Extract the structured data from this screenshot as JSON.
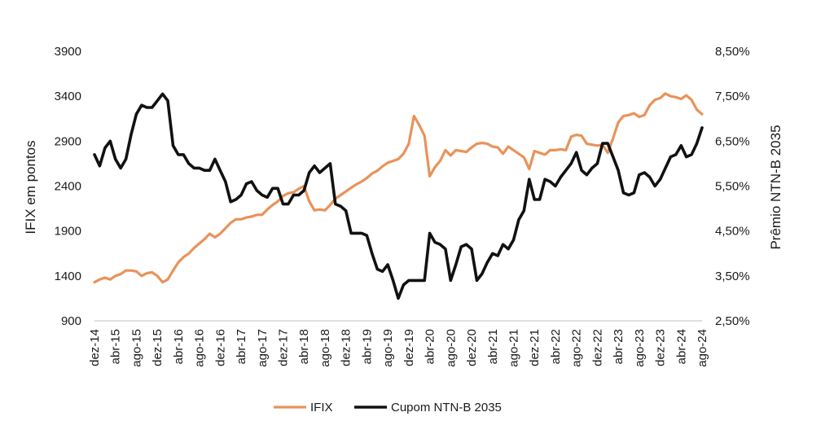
{
  "chart_data": {
    "type": "line",
    "ylabel_left": "IFIX em pontos",
    "ylabel_right": "Prêmio NTN-B 2035",
    "y_left_ticks": [
      "900",
      "1400",
      "1900",
      "2400",
      "2900",
      "3400",
      "3900"
    ],
    "y_right_ticks": [
      "2,50%",
      "3,50%",
      "4,50%",
      "5,50%",
      "6,50%",
      "7,50%",
      "8,50%"
    ],
    "ylim_left": [
      900,
      3900
    ],
    "ylim_right": [
      2.5,
      8.5
    ],
    "x_tick_labels": [
      "dez-14",
      "abr-15",
      "ago-15",
      "dez-15",
      "abr-16",
      "ago-16",
      "dez-16",
      "abr-17",
      "ago-17",
      "dez-17",
      "abr-18",
      "ago-18",
      "dez-18",
      "abr-19",
      "ago-19",
      "dez-19",
      "abr-20",
      "ago-20",
      "dez-20",
      "abr-21",
      "ago-21",
      "dez-21",
      "abr-22",
      "ago-22",
      "dez-22",
      "abr-23",
      "ago-23",
      "dez-23",
      "abr-24",
      "ago-24"
    ],
    "legend_position": "bottom",
    "grid": false,
    "series": [
      {
        "name": "IFIX",
        "axis": "left",
        "color": "#E8935A",
        "points": [
          [
            0,
            1330
          ],
          [
            1,
            1360
          ],
          [
            2,
            1380
          ],
          [
            3,
            1360
          ],
          [
            4,
            1400
          ],
          [
            5,
            1420
          ],
          [
            6,
            1460
          ],
          [
            7,
            1460
          ],
          [
            8,
            1450
          ],
          [
            9,
            1400
          ],
          [
            10,
            1430
          ],
          [
            11,
            1440
          ],
          [
            12,
            1400
          ],
          [
            13,
            1330
          ],
          [
            14,
            1360
          ],
          [
            15,
            1460
          ],
          [
            16,
            1550
          ],
          [
            17,
            1610
          ],
          [
            18,
            1650
          ],
          [
            19,
            1710
          ],
          [
            20,
            1760
          ],
          [
            21,
            1810
          ],
          [
            22,
            1870
          ],
          [
            23,
            1830
          ],
          [
            24,
            1870
          ],
          [
            25,
            1930
          ],
          [
            26,
            1990
          ],
          [
            27,
            2030
          ],
          [
            28,
            2030
          ],
          [
            29,
            2050
          ],
          [
            30,
            2060
          ],
          [
            31,
            2080
          ],
          [
            32,
            2080
          ],
          [
            33,
            2140
          ],
          [
            34,
            2190
          ],
          [
            35,
            2230
          ],
          [
            36,
            2290
          ],
          [
            37,
            2320
          ],
          [
            38,
            2330
          ],
          [
            39,
            2370
          ],
          [
            40,
            2400
          ],
          [
            41,
            2230
          ],
          [
            42,
            2130
          ],
          [
            43,
            2140
          ],
          [
            44,
            2130
          ],
          [
            45,
            2190
          ],
          [
            46,
            2260
          ],
          [
            47,
            2300
          ],
          [
            48,
            2340
          ],
          [
            49,
            2380
          ],
          [
            50,
            2420
          ],
          [
            51,
            2450
          ],
          [
            52,
            2490
          ],
          [
            53,
            2540
          ],
          [
            54,
            2570
          ],
          [
            55,
            2620
          ],
          [
            56,
            2660
          ],
          [
            57,
            2680
          ],
          [
            58,
            2700
          ],
          [
            59,
            2760
          ],
          [
            60,
            2870
          ],
          [
            61,
            3180
          ],
          [
            62,
            3080
          ],
          [
            63,
            2960
          ],
          [
            64,
            2510
          ],
          [
            65,
            2610
          ],
          [
            66,
            2680
          ],
          [
            67,
            2800
          ],
          [
            68,
            2740
          ],
          [
            69,
            2800
          ],
          [
            70,
            2790
          ],
          [
            71,
            2780
          ],
          [
            72,
            2830
          ],
          [
            73,
            2870
          ],
          [
            74,
            2880
          ],
          [
            75,
            2870
          ],
          [
            76,
            2840
          ],
          [
            77,
            2830
          ],
          [
            78,
            2760
          ],
          [
            79,
            2840
          ],
          [
            80,
            2800
          ],
          [
            81,
            2760
          ],
          [
            82,
            2720
          ],
          [
            83,
            2590
          ],
          [
            84,
            2790
          ],
          [
            85,
            2770
          ],
          [
            86,
            2750
          ],
          [
            87,
            2800
          ],
          [
            88,
            2800
          ],
          [
            89,
            2810
          ],
          [
            90,
            2800
          ],
          [
            91,
            2950
          ],
          [
            92,
            2970
          ],
          [
            93,
            2960
          ],
          [
            94,
            2870
          ],
          [
            95,
            2860
          ],
          [
            96,
            2850
          ],
          [
            97,
            2860
          ],
          [
            98,
            2770
          ],
          [
            99,
            2930
          ],
          [
            100,
            3110
          ],
          [
            101,
            3180
          ],
          [
            102,
            3190
          ],
          [
            103,
            3210
          ],
          [
            104,
            3170
          ],
          [
            105,
            3190
          ],
          [
            106,
            3300
          ],
          [
            107,
            3360
          ],
          [
            108,
            3380
          ],
          [
            109,
            3430
          ],
          [
            110,
            3400
          ],
          [
            111,
            3390
          ],
          [
            112,
            3370
          ],
          [
            113,
            3410
          ],
          [
            114,
            3360
          ],
          [
            115,
            3250
          ],
          [
            116,
            3200
          ]
        ]
      },
      {
        "name": "Cupom NTN-B 2035",
        "axis": "right",
        "color": "#111111",
        "points": [
          [
            0,
            6.2
          ],
          [
            1,
            5.95
          ],
          [
            2,
            6.35
          ],
          [
            3,
            6.5
          ],
          [
            4,
            6.1
          ],
          [
            5,
            5.9
          ],
          [
            6,
            6.1
          ],
          [
            7,
            6.65
          ],
          [
            8,
            7.1
          ],
          [
            9,
            7.3
          ],
          [
            10,
            7.25
          ],
          [
            11,
            7.25
          ],
          [
            12,
            7.4
          ],
          [
            13,
            7.55
          ],
          [
            14,
            7.4
          ],
          [
            15,
            6.4
          ],
          [
            16,
            6.2
          ],
          [
            17,
            6.2
          ],
          [
            18,
            6.0
          ],
          [
            19,
            5.9
          ],
          [
            20,
            5.9
          ],
          [
            21,
            5.85
          ],
          [
            22,
            5.85
          ],
          [
            23,
            6.1
          ],
          [
            24,
            5.85
          ],
          [
            25,
            5.6
          ],
          [
            26,
            5.15
          ],
          [
            27,
            5.2
          ],
          [
            28,
            5.3
          ],
          [
            29,
            5.55
          ],
          [
            30,
            5.6
          ],
          [
            31,
            5.4
          ],
          [
            32,
            5.3
          ],
          [
            33,
            5.25
          ],
          [
            34,
            5.45
          ],
          [
            35,
            5.45
          ],
          [
            36,
            5.1
          ],
          [
            37,
            5.1
          ],
          [
            38,
            5.3
          ],
          [
            39,
            5.3
          ],
          [
            40,
            5.4
          ],
          [
            41,
            5.8
          ],
          [
            42,
            5.95
          ],
          [
            43,
            5.8
          ],
          [
            44,
            5.9
          ],
          [
            45,
            6.0
          ],
          [
            46,
            5.1
          ],
          [
            47,
            5.05
          ],
          [
            48,
            4.95
          ],
          [
            49,
            4.45
          ],
          [
            50,
            4.45
          ],
          [
            51,
            4.45
          ],
          [
            52,
            4.4
          ],
          [
            53,
            4.0
          ],
          [
            54,
            3.65
          ],
          [
            55,
            3.6
          ],
          [
            56,
            3.75
          ],
          [
            57,
            3.4
          ],
          [
            58,
            3.0
          ],
          [
            59,
            3.3
          ],
          [
            60,
            3.4
          ],
          [
            61,
            3.4
          ],
          [
            62,
            3.4
          ],
          [
            63,
            3.4
          ],
          [
            64,
            4.45
          ],
          [
            65,
            4.25
          ],
          [
            66,
            4.2
          ],
          [
            67,
            4.1
          ],
          [
            68,
            3.4
          ],
          [
            69,
            3.75
          ],
          [
            70,
            4.15
          ],
          [
            71,
            4.2
          ],
          [
            72,
            4.1
          ],
          [
            73,
            3.4
          ],
          [
            74,
            3.55
          ],
          [
            75,
            3.8
          ],
          [
            76,
            4.0
          ],
          [
            77,
            3.95
          ],
          [
            78,
            4.2
          ],
          [
            79,
            4.1
          ],
          [
            80,
            4.3
          ],
          [
            81,
            4.75
          ],
          [
            82,
            4.95
          ],
          [
            83,
            5.65
          ],
          [
            84,
            5.2
          ],
          [
            85,
            5.2
          ],
          [
            86,
            5.65
          ],
          [
            87,
            5.6
          ],
          [
            88,
            5.5
          ],
          [
            89,
            5.7
          ],
          [
            90,
            5.85
          ],
          [
            91,
            6.0
          ],
          [
            92,
            6.25
          ],
          [
            93,
            5.85
          ],
          [
            94,
            5.75
          ],
          [
            95,
            5.9
          ],
          [
            96,
            6.0
          ],
          [
            97,
            6.45
          ],
          [
            98,
            6.45
          ],
          [
            99,
            6.15
          ],
          [
            100,
            5.85
          ],
          [
            101,
            5.35
          ],
          [
            102,
            5.3
          ],
          [
            103,
            5.35
          ],
          [
            104,
            5.75
          ],
          [
            105,
            5.8
          ],
          [
            106,
            5.7
          ],
          [
            107,
            5.5
          ],
          [
            108,
            5.65
          ],
          [
            109,
            5.9
          ],
          [
            110,
            6.15
          ],
          [
            111,
            6.2
          ],
          [
            112,
            6.4
          ],
          [
            113,
            6.15
          ],
          [
            114,
            6.2
          ],
          [
            115,
            6.45
          ],
          [
            116,
            6.8
          ]
        ]
      }
    ]
  }
}
